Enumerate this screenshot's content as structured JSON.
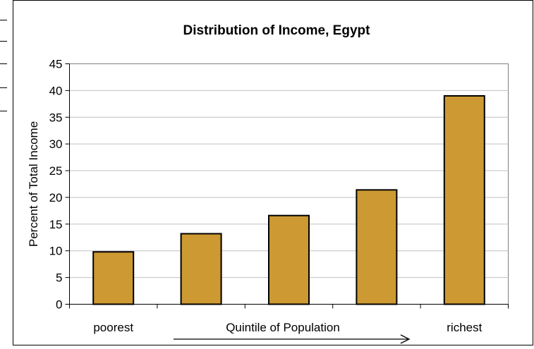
{
  "chart_data": {
    "type": "bar",
    "title": "Distribution of Income, Egypt",
    "xlabel": "Quintile of Population",
    "ylabel": "Percent of Total Income",
    "categories": [
      "poorest",
      "",
      "",
      "",
      "richest"
    ],
    "values": [
      9.8,
      13.2,
      16.6,
      21.4,
      39.0
    ],
    "ylim": [
      0,
      45
    ],
    "yticks": [
      "0",
      "5",
      "10",
      "15",
      "20",
      "25",
      "30",
      "35",
      "40",
      "45"
    ],
    "grid": true,
    "legend": "none",
    "colors": {
      "bar": "#CC9933",
      "bar_edge": "#000000",
      "grid": "#C0C0C0",
      "plot_border": "#808080"
    }
  }
}
